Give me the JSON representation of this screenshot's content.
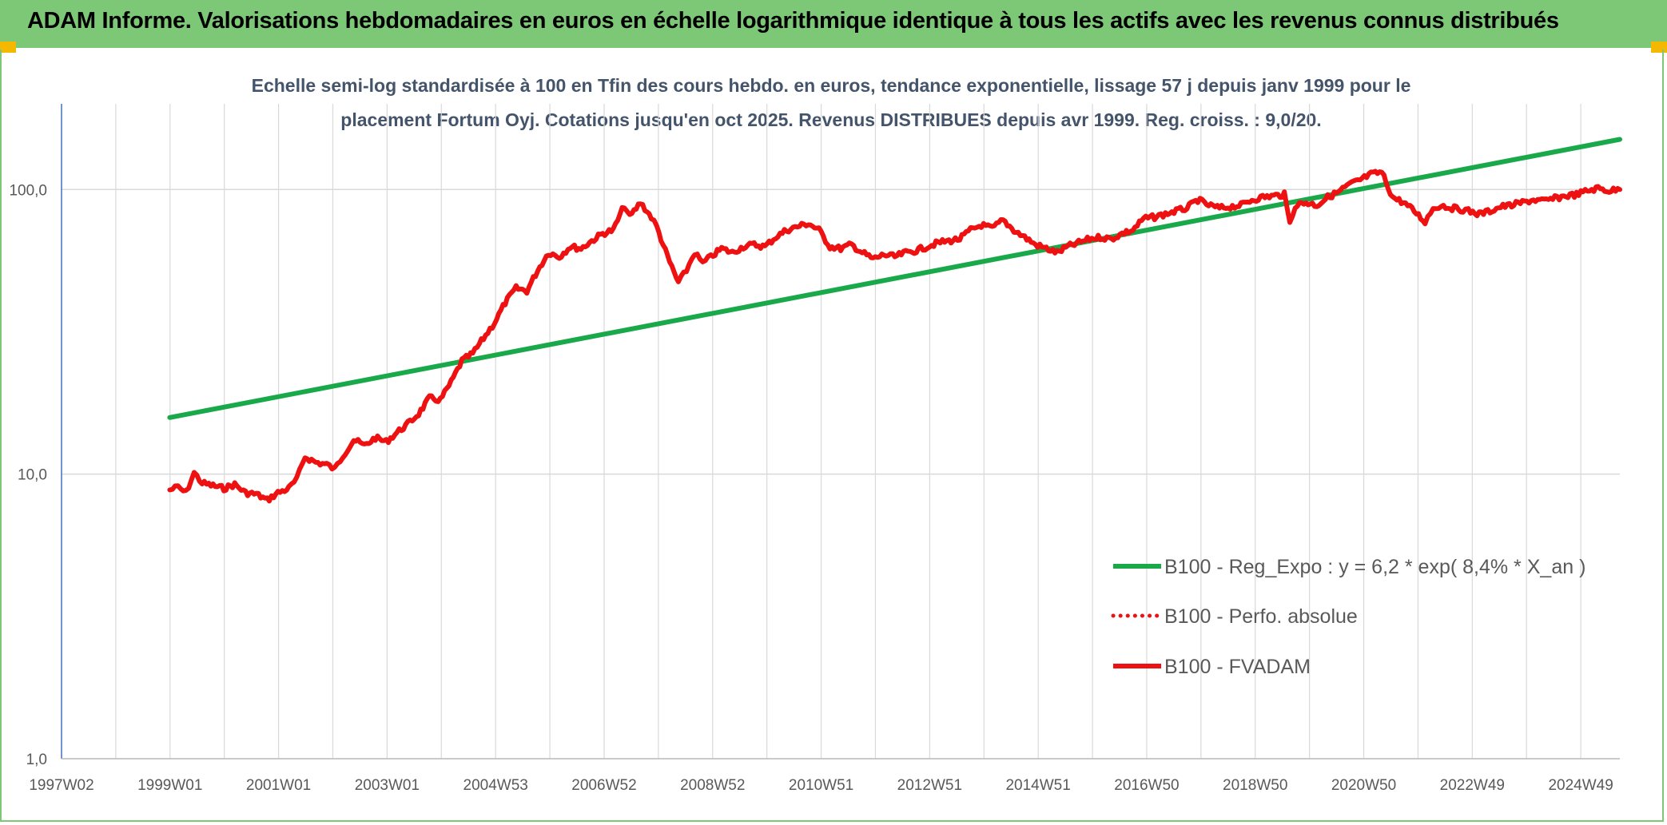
{
  "header": {
    "title": "ADAM Informe. Valorisations hebdomadaires en euros en échelle logarithmique identique à tous les actifs avec les revenus connus distribués"
  },
  "colors": {
    "header_bg": "#7dc877",
    "corner": "#f5b800",
    "regression": "#19a94a",
    "series": "#ee1111",
    "grid": "#d9d9d9"
  },
  "chart_data": {
    "type": "line",
    "title_lines": [
      "Echelle semi-log standardisée à 100 en Tfin des cours hebdo. en euros, tendance exponentielle, lissage 57 j depuis janv 1999 pour le",
      "placement Fortum Oyj. Cotations jusqu'en oct 2025. Revenus DISTRIBUES depuis avr 1999. Reg. croiss. : 9,0/20."
    ],
    "y_scale": "log",
    "ylim": [
      1,
      200
    ],
    "y_ticks": [
      "1,0",
      "10,0",
      "100,0"
    ],
    "x_ticks": [
      "1997W02",
      "1999W01",
      "2001W01",
      "2003W01",
      "2004W53",
      "2006W52",
      "2008W52",
      "2010W51",
      "2012W51",
      "2014W51",
      "2016W50",
      "2018W50",
      "2020W50",
      "2022W49",
      "2024W49"
    ],
    "x_range_years": [
      1997.0,
      2025.8
    ],
    "grid": true,
    "legend_position": "bottom-right",
    "series": [
      {
        "name": "B100 - Reg_Expo : y = 6,2 * exp( 8,4% *  X_an )",
        "color": "#19a94a",
        "style": "solid",
        "x": [
          1999.0,
          2025.8
        ],
        "y": [
          15.8,
          150
        ]
      },
      {
        "name": "B100 - Perfo. absolue",
        "color": "#ee1111",
        "style": "dotted",
        "x": [],
        "y": []
      },
      {
        "name": "B100 - FVADAM",
        "color": "#ee1111",
        "style": "solid",
        "x": [
          1999.0,
          1999.15,
          1999.3,
          1999.45,
          1999.6,
          1999.8,
          2000.0,
          2000.2,
          2000.4,
          2000.6,
          2000.8,
          2001.0,
          2001.2,
          2001.35,
          2001.5,
          2001.7,
          2001.9,
          2002.05,
          2002.2,
          2002.4,
          2002.6,
          2002.8,
          2003.0,
          2003.2,
          2003.4,
          2003.6,
          2003.8,
          2004.0,
          2004.2,
          2004.4,
          2004.6,
          2004.8,
          2005.0,
          2005.2,
          2005.4,
          2005.6,
          2005.8,
          2006.0,
          2006.2,
          2006.4,
          2006.6,
          2006.8,
          2007.0,
          2007.2,
          2007.4,
          2007.5,
          2007.7,
          2007.9,
          2008.0,
          2008.2,
          2008.4,
          2008.55,
          2008.7,
          2008.85,
          2009.0,
          2009.2,
          2009.4,
          2009.6,
          2009.8,
          2010.0,
          2010.2,
          2010.4,
          2010.6,
          2010.8,
          2011.0,
          2011.2,
          2011.4,
          2011.6,
          2011.8,
          2012.0,
          2012.2,
          2012.4,
          2012.6,
          2012.8,
          2013.0,
          2013.2,
          2013.4,
          2013.6,
          2013.8,
          2014.0,
          2014.2,
          2014.4,
          2014.6,
          2014.8,
          2015.0,
          2015.2,
          2015.4,
          2015.6,
          2015.8,
          2016.0,
          2016.2,
          2016.4,
          2016.6,
          2016.8,
          2017.0,
          2017.2,
          2017.4,
          2017.6,
          2017.8,
          2018.0,
          2018.2,
          2018.4,
          2018.6,
          2018.8,
          2019.0,
          2019.2,
          2019.4,
          2019.6,
          2019.7,
          2019.8,
          2020.0,
          2020.2,
          2020.4,
          2020.6,
          2020.8,
          2021.0,
          2021.2,
          2021.4,
          2021.6,
          2021.8,
          2022.0,
          2022.2,
          2022.35,
          2022.5,
          2022.7,
          2022.9,
          2023.0,
          2023.2,
          2023.4,
          2023.6,
          2023.8,
          2024.0,
          2024.2,
          2024.4,
          2024.6,
          2024.8,
          2025.0,
          2025.2,
          2025.4,
          2025.6,
          2025.8
        ],
        "y": [
          8.8,
          9.0,
          8.6,
          10.1,
          9.3,
          9.1,
          8.9,
          9.2,
          8.6,
          8.5,
          8.1,
          8.6,
          8.9,
          9.6,
          11.5,
          11.0,
          10.8,
          10.4,
          11.6,
          13.2,
          12.6,
          13.4,
          13.0,
          14.0,
          15.0,
          16.3,
          18.5,
          18.2,
          21.0,
          25.0,
          26.5,
          30.0,
          34.0,
          40.0,
          45.0,
          44.0,
          52.0,
          60.0,
          58.0,
          63.0,
          62.0,
          66.0,
          70.0,
          72.0,
          88.0,
          80.0,
          90.0,
          80.0,
          74.0,
          58.0,
          47.0,
          52.0,
          60.0,
          55.0,
          58.0,
          62.0,
          60.0,
          63.0,
          64.0,
          63.0,
          68.0,
          72.0,
          74.0,
          76.0,
          72.0,
          63.0,
          62.0,
          64.0,
          60.0,
          57.0,
          59.0,
          58.0,
          60.0,
          61.0,
          63.0,
          65.0,
          66.0,
          67.0,
          72.0,
          75.0,
          73.0,
          78.0,
          72.0,
          68.0,
          64.0,
          62.0,
          60.0,
          63.0,
          65.0,
          67.0,
          68.0,
          67.0,
          70.0,
          72.0,
          79.0,
          80.0,
          82.0,
          84.0,
          86.0,
          92.0,
          88.0,
          86.0,
          87.0,
          88.0,
          92.0,
          94.0,
          95.0,
          96.0,
          76.0,
          88.0,
          90.0,
          88.0,
          94.0,
          98.0,
          104.0,
          108.0,
          113.0,
          115.0,
          94.0,
          90.0,
          84.0,
          77.0,
          86.0,
          88.0,
          86.0,
          85.0,
          84.0,
          82.0,
          84.0,
          87.0,
          88.0,
          90.0,
          92.0,
          91.0,
          93.0,
          95.0,
          96.0,
          99.0,
          101.0,
          99.0,
          100.0
        ]
      }
    ]
  }
}
